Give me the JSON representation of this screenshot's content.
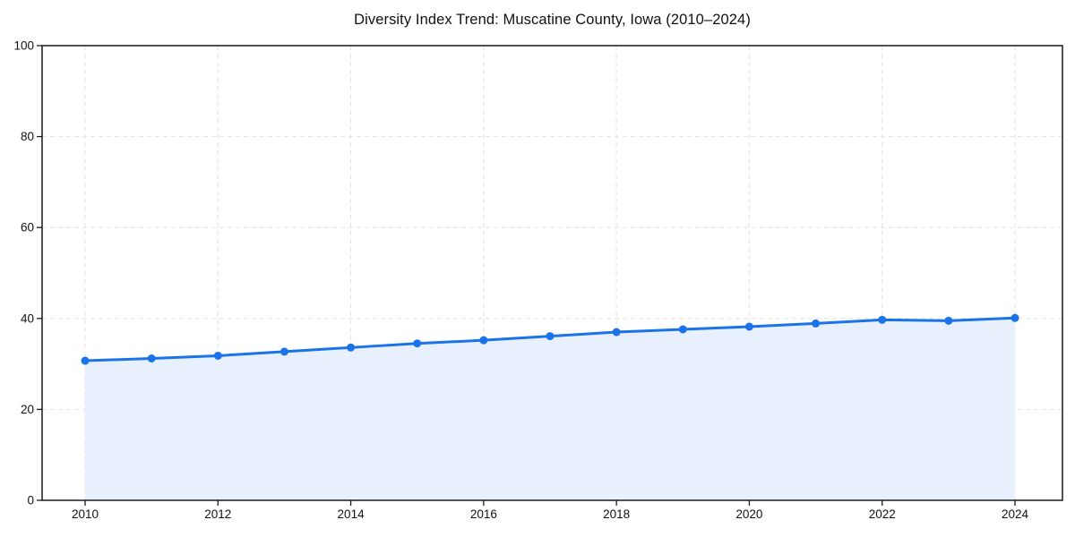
{
  "chart_data": {
    "type": "area",
    "title": "Diversity Index Trend: Muscatine County, Iowa (2010–2024)",
    "x": [
      2010,
      2011,
      2012,
      2013,
      2014,
      2015,
      2016,
      2017,
      2018,
      2019,
      2020,
      2021,
      2022,
      2023,
      2024
    ],
    "values": [
      30.7,
      31.2,
      31.8,
      32.7,
      33.6,
      34.5,
      35.2,
      36.1,
      37.0,
      37.6,
      38.2,
      38.9,
      39.7,
      39.5,
      40.1
    ],
    "series_name": "Diversity Index",
    "xlabel": "",
    "ylabel": "",
    "ylim": [
      0,
      100
    ],
    "yticks": [
      0,
      20,
      40,
      60,
      80,
      100
    ],
    "xticks": [
      2010,
      2012,
      2014,
      2016,
      2018,
      2020,
      2022,
      2024
    ],
    "grid": true,
    "grid_style": "dashed",
    "legend": false,
    "marker": "circle",
    "colors": {
      "line": "#1a73e8",
      "marker": "#1a73e8",
      "fill": "#e8f0fd",
      "grid": "#e2e2e2",
      "axis": "#1a1a1a",
      "tick_text": "#111111",
      "background": "#ffffff"
    }
  }
}
